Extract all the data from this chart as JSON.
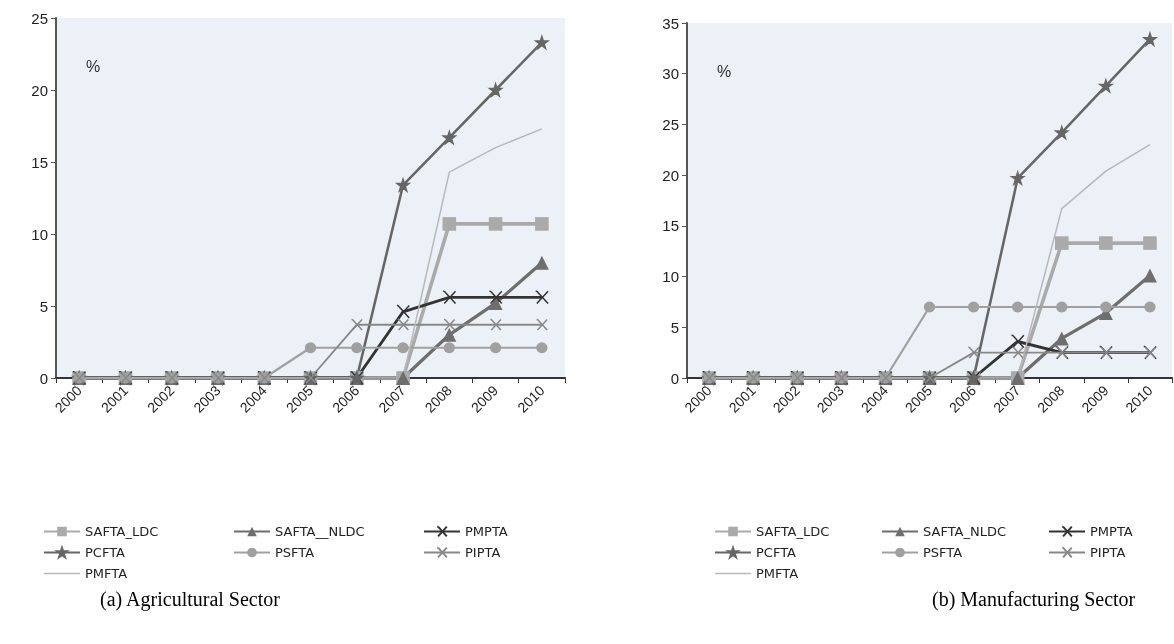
{
  "chart_data": [
    {
      "type": "line",
      "title": "(a) Agricultural Sector",
      "ylabel": "%",
      "categories": [
        "2000",
        "2001",
        "2002",
        "2003",
        "2004",
        "2005",
        "2006",
        "2007",
        "2008",
        "2009",
        "2010"
      ],
      "ylim": [
        0,
        25
      ],
      "yticks": [
        0,
        5,
        10,
        15,
        20,
        25
      ],
      "grid": false,
      "legend": "bottom",
      "series": [
        {
          "name": "SAFTA_LDC",
          "color": "#aaaaaa",
          "marker": "square",
          "values": [
            0,
            0,
            0,
            0,
            0,
            0,
            0,
            0,
            10.7,
            10.7,
            10.7
          ]
        },
        {
          "name": "SAFTA__NLDC",
          "color": "#6e6e6e",
          "marker": "triangle",
          "values": [
            0,
            0,
            0,
            0,
            0,
            0,
            0,
            0,
            3.0,
            5.2,
            8.0
          ]
        },
        {
          "name": "PMPTA",
          "color": "#333333",
          "marker": "cross",
          "values": [
            0,
            0,
            0,
            0,
            0,
            0,
            0,
            4.6,
            5.6,
            5.6,
            5.6
          ]
        },
        {
          "name": "PCFTA",
          "color": "#666666",
          "marker": "star",
          "values": [
            0,
            0,
            0,
            0,
            0,
            0,
            0,
            13.4,
            16.7,
            20.0,
            23.3
          ]
        },
        {
          "name": "PSFTA",
          "color": "#a0a0a0",
          "marker": "circle",
          "values": [
            0,
            0,
            0,
            0,
            0,
            2.1,
            2.1,
            2.1,
            2.1,
            2.1,
            2.1
          ]
        },
        {
          "name": "PIPTA",
          "color": "#888888",
          "marker": "cross",
          "values": [
            0,
            0,
            0,
            0,
            0,
            0,
            3.7,
            3.7,
            3.7,
            3.7,
            3.7
          ]
        },
        {
          "name": "PMFTA",
          "color": "#b8b8b8",
          "marker": "none",
          "values": [
            0,
            0,
            0,
            0,
            0,
            0,
            0,
            0,
            14.3,
            16.0,
            17.3
          ]
        }
      ]
    },
    {
      "type": "line",
      "title": "(b) Manufacturing Sector",
      "ylabel": "%",
      "categories": [
        "2000",
        "2001",
        "2002",
        "2003",
        "2004",
        "2005",
        "2006",
        "2007",
        "2008",
        "2009",
        "2010"
      ],
      "ylim": [
        0,
        35
      ],
      "yticks": [
        0,
        5,
        10,
        15,
        20,
        25,
        30,
        35
      ],
      "grid": false,
      "legend": "bottom",
      "series": [
        {
          "name": "SAFTA_LDC",
          "color": "#aaaaaa",
          "marker": "square",
          "values": [
            0,
            0,
            0,
            0,
            0,
            0,
            0,
            0,
            13.3,
            13.3,
            13.3
          ]
        },
        {
          "name": "SAFTA_NLDC",
          "color": "#6e6e6e",
          "marker": "triangle",
          "values": [
            0,
            0,
            0,
            0,
            0,
            0,
            0,
            0,
            3.9,
            6.4,
            10.1
          ]
        },
        {
          "name": "PMPTA",
          "color": "#333333",
          "marker": "cross",
          "values": [
            0,
            0,
            0,
            0,
            0,
            0,
            0,
            3.6,
            2.5,
            2.5,
            2.5
          ]
        },
        {
          "name": "PCFTA",
          "color": "#666666",
          "marker": "star",
          "values": [
            0,
            0,
            0,
            0,
            0,
            0,
            0,
            19.7,
            24.2,
            28.8,
            33.4
          ]
        },
        {
          "name": "PSFTA",
          "color": "#a0a0a0",
          "marker": "circle",
          "values": [
            0,
            0,
            0,
            0,
            0,
            7.0,
            7.0,
            7.0,
            7.0,
            7.0,
            7.0
          ]
        },
        {
          "name": "PIPTA",
          "color": "#888888",
          "marker": "cross",
          "values": [
            0,
            0,
            0,
            0,
            0,
            0,
            2.5,
            2.5,
            2.5,
            2.5,
            2.5
          ]
        },
        {
          "name": "PMFTA",
          "color": "#b8b8b8",
          "marker": "none",
          "values": [
            0,
            0,
            0,
            0,
            0,
            0,
            0,
            0,
            16.7,
            20.4,
            23.0
          ]
        }
      ]
    }
  ]
}
